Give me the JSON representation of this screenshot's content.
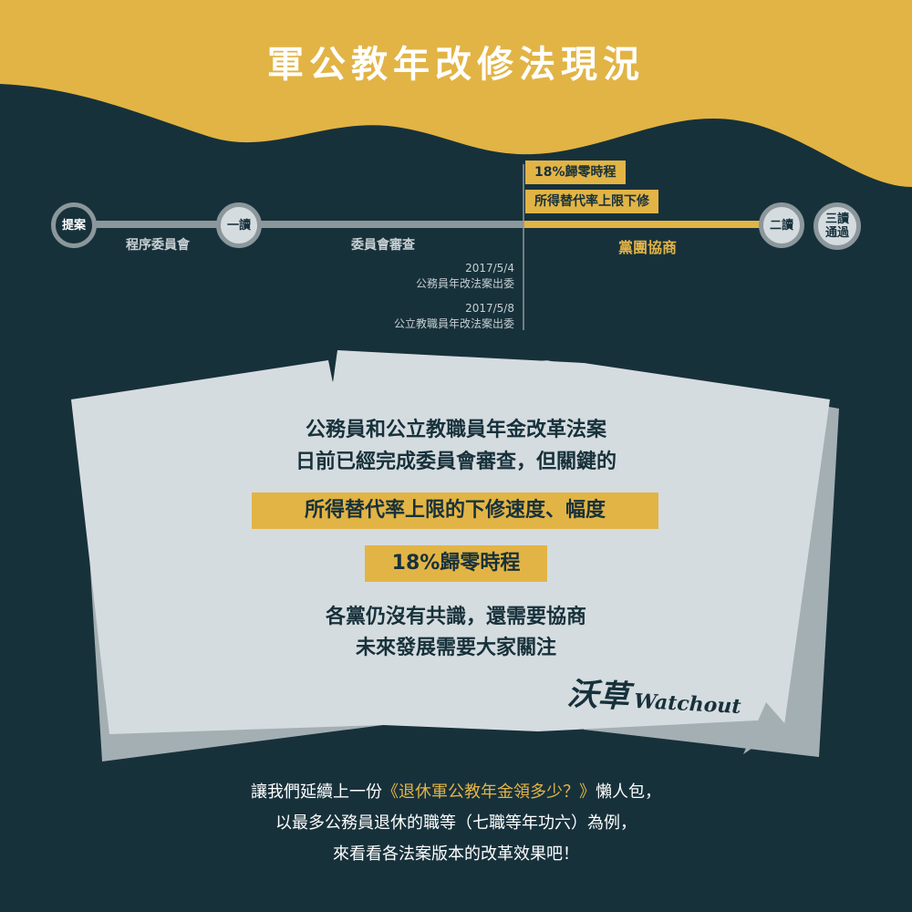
{
  "title": "軍公教年改修法現況",
  "colors": {
    "background": "#17313b",
    "accent": "#e2b445",
    "paper": "#d5dcdf",
    "line_gray": "#8c979c"
  },
  "timeline": {
    "nodes": {
      "proposal": "提案",
      "first_reading": "一讀",
      "second_reading": "二讀",
      "third_reading": "三讀通過"
    },
    "stages": {
      "procedure": "程序委員會",
      "committee_review": "委員會審查",
      "party_negotiation": "黨團協商"
    },
    "tags": [
      "18%歸零時程",
      "所得替代率上限下修"
    ],
    "notes": [
      {
        "date": "2017/5/4",
        "text": "公務員年改法案出委"
      },
      {
        "date": "2017/5/8",
        "text": "公立教職員年改法案出委"
      }
    ]
  },
  "paper": {
    "line1": "公務員和公立教職員年金改革法案",
    "line2": "日前已經完成委員會審查，但關鍵的",
    "highlight1": "所得替代率上限的下修速度、幅度",
    "highlight2": "18%歸零時程",
    "line3": "各黨仍沒有共識，還需要協商",
    "line4": "未來發展需要大家關注",
    "logo_cn": "沃草",
    "logo_en": "Watchout"
  },
  "footer": {
    "line1_pre": "讓我們延續上一份",
    "line1_accent": "《退休軍公教年金領多少？》",
    "line1_post": "懶人包，",
    "line2": "以最多公務員退休的職等（七職等年功六）為例，",
    "line3": "來看看各法案版本的改革效果吧！"
  }
}
